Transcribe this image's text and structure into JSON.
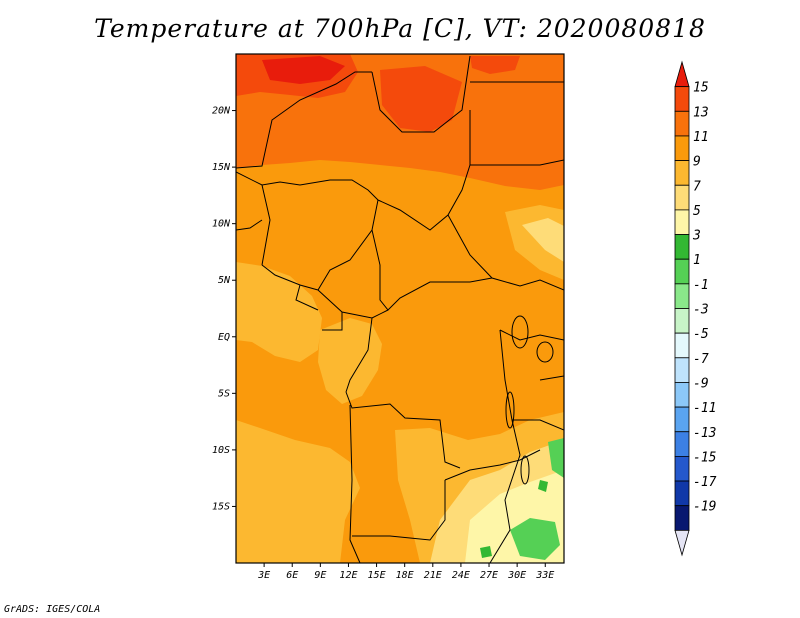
{
  "title": "Temperature at 700hPa [C], VT: 2020080818",
  "credit": "GrADS: IGES/COLA",
  "map": {
    "lon_range": [
      0,
      35
    ],
    "lat_range": [
      -20,
      25
    ],
    "x_ticks": [
      {
        "lon": 3,
        "label": "3E"
      },
      {
        "lon": 6,
        "label": "6E"
      },
      {
        "lon": 9,
        "label": "9E"
      },
      {
        "lon": 12,
        "label": "12E"
      },
      {
        "lon": 15,
        "label": "15E"
      },
      {
        "lon": 18,
        "label": "18E"
      },
      {
        "lon": 21,
        "label": "21E"
      },
      {
        "lon": 24,
        "label": "24E"
      },
      {
        "lon": 27,
        "label": "27E"
      },
      {
        "lon": 30,
        "label": "30E"
      },
      {
        "lon": 33,
        "label": "33E"
      }
    ],
    "y_ticks": [
      {
        "lat": 20,
        "label": "20N"
      },
      {
        "lat": 15,
        "label": "15N"
      },
      {
        "lat": 10,
        "label": "10N"
      },
      {
        "lat": 5,
        "label": "5N"
      },
      {
        "lat": 0,
        "label": "EQ"
      },
      {
        "lat": -5,
        "label": "5S"
      },
      {
        "lat": -10,
        "label": "10S"
      },
      {
        "lat": -15,
        "label": "15S"
      }
    ]
  },
  "colorbar": {
    "labels": [
      "15",
      "13",
      "11",
      "9",
      "7",
      "5",
      "3",
      "1",
      "-1",
      "-3",
      "-5",
      "-7",
      "-9",
      "-11",
      "-13",
      "-15",
      "-17",
      "-19"
    ],
    "colors": [
      "#e81c0c",
      "#f44a0c",
      "#f8720c",
      "#fa9a0c",
      "#fcb830",
      "#fedc78",
      "#fef6a8",
      "#33b833",
      "#55d055",
      "#8ae88a",
      "#c8f4c8",
      "#e4f8fc",
      "#bfe3fc",
      "#8cc8f8",
      "#5aa4f0",
      "#3c80e4",
      "#2458cc",
      "#1038a8",
      "#081870",
      "#e4e4f4"
    ]
  }
}
